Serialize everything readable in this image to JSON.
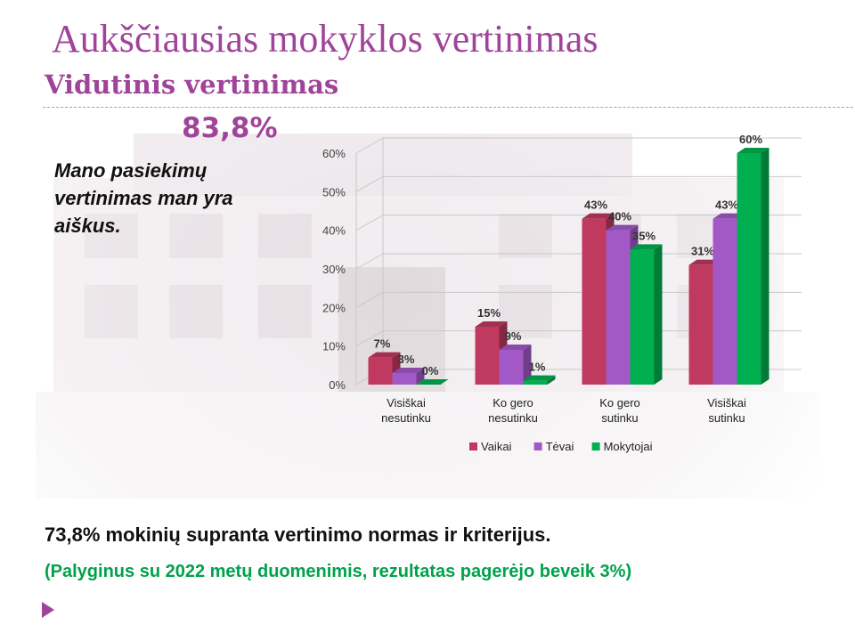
{
  "title": "Aukščiausias mokyklos vertinimas",
  "subtitle": "Vidutinis vertinimas",
  "average": "83,8%",
  "question": "Mano pasiekimų vertinimas man yra aiškus.",
  "footer_main": "73,8% mokinių supranta vertinimo normas ir kriterijus.",
  "footer_note": "(Palyginus su 2022 metų duomenimis, rezultatas pagerėjo beveik 3%)",
  "colors": {
    "accent": "#a0449a",
    "vaikai": "#c0395f",
    "tevai": "#a259c7",
    "mokytojai": "#00b050",
    "note_green": "#00a24b"
  },
  "chart_data": {
    "type": "bar",
    "categories": [
      [
        "Visiškai",
        "nesutinku"
      ],
      [
        "Ko gero",
        "nesutinku"
      ],
      [
        "Ko gero",
        "sutinku"
      ],
      [
        "Visiškai",
        "sutinku"
      ]
    ],
    "series": [
      {
        "name": "Vaikai",
        "values": [
          7,
          15,
          43,
          31
        ],
        "labels": [
          "7%",
          "15%",
          "43%",
          "31%"
        ]
      },
      {
        "name": "Tėvai",
        "values": [
          3,
          9,
          40,
          43
        ],
        "labels": [
          "3%",
          "9%",
          "40%",
          "43%"
        ]
      },
      {
        "name": "Mokytojai",
        "values": [
          0,
          1,
          35,
          60
        ],
        "labels": [
          "0%",
          "1%",
          "35%",
          "60%"
        ]
      }
    ],
    "yticks": [
      "0%",
      "10%",
      "20%",
      "30%",
      "40%",
      "50%",
      "60%"
    ],
    "ylim": [
      0,
      60
    ],
    "grid": true,
    "legend": "bottom"
  }
}
